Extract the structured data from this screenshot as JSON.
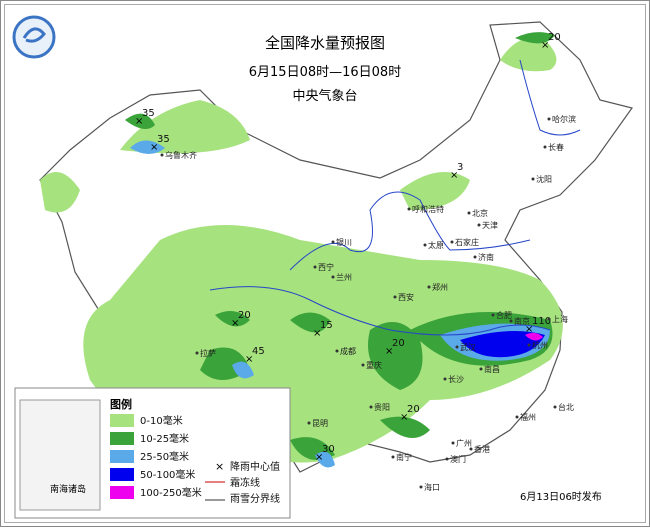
{
  "header": {
    "title": "全国降水量预报图",
    "period": "6月15日08时—16日08时",
    "agency": "中央气象台"
  },
  "centers": [
    "20",
    "35",
    "35",
    "3",
    "20",
    "15",
    "20",
    "45",
    "110",
    "20",
    "30"
  ],
  "cities": [
    "哈尔滨",
    "长春",
    "沈阳",
    "乌鲁木齐",
    "呼和浩特",
    "北京",
    "天津",
    "银川",
    "太原",
    "石家庄",
    "济南",
    "西宁",
    "兰州",
    "郑州",
    "西安",
    "合肥",
    "南京",
    "上海",
    "杭州",
    "武汉",
    "成都",
    "重庆",
    "长沙",
    "南昌",
    "拉萨",
    "贵阳",
    "昆明",
    "南宁",
    "广州",
    "福州",
    "台北",
    "海口",
    "香港",
    "澳门"
  ],
  "legend": {
    "title": "图例",
    "items": [
      "0-10毫米",
      "10-25毫米",
      "25-50毫米",
      "50-100毫米",
      "100-250毫米"
    ],
    "symbols": [
      "降雨中心值",
      "霜冻线",
      "雨雪分界线"
    ]
  },
  "inset": "南海诸岛",
  "issued": "6月13日06时发布"
}
